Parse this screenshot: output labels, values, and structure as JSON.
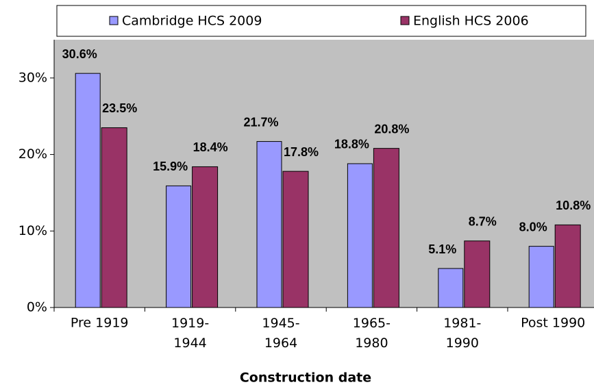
{
  "chart_data": {
    "type": "bar",
    "x_label": "Construction date",
    "categories": [
      "Pre 1919",
      "1919-1944",
      "1945-1964",
      "1965-1980",
      "1981-1990",
      "Post 1990"
    ],
    "series": [
      {
        "name": "Cambridge HCS 2009",
        "color": "#9999ff",
        "values": [
          30.6,
          15.9,
          21.7,
          18.8,
          5.1,
          8.0
        ],
        "value_labels": [
          "30.6%",
          "15.9%",
          "21.7%",
          "18.8%",
          "5.1%",
          "8.0%"
        ]
      },
      {
        "name": "English HCS 2006",
        "color": "#993366",
        "values": [
          23.5,
          18.4,
          17.8,
          20.8,
          8.7,
          10.8
        ],
        "value_labels": [
          "23.5%",
          "18.4%",
          "17.8%",
          "20.8%",
          "8.7%",
          "10.8%"
        ]
      }
    ],
    "ylim": [
      0,
      35
    ],
    "yticks": [
      {
        "value": 0,
        "label": "0%"
      },
      {
        "value": 10,
        "label": "10%"
      },
      {
        "value": 20,
        "label": "20%"
      },
      {
        "value": 30,
        "label": "30%"
      }
    ],
    "plot_background": "#c0c0c0",
    "grid": false
  }
}
